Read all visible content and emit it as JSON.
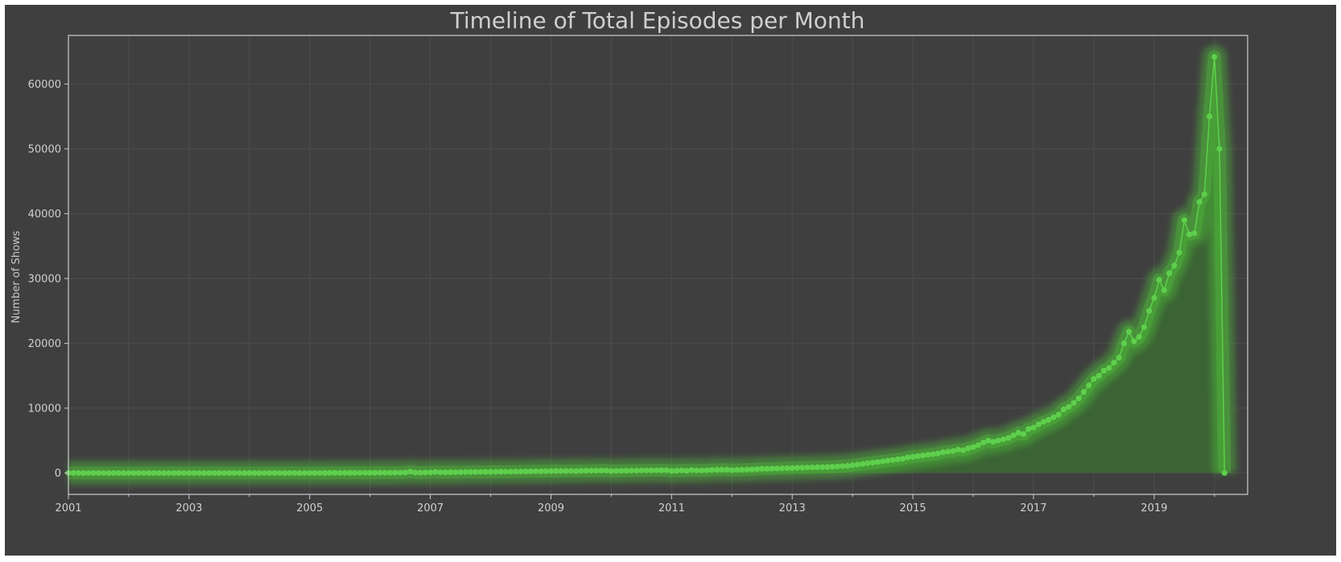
{
  "chart_data": {
    "type": "line",
    "title": "Timeline of Total Episodes per Month",
    "xlabel": "",
    "ylabel": "Number of Shows",
    "x_range": [
      "2001-01",
      "2020-06"
    ],
    "xlim": [
      2001.0,
      2020.55
    ],
    "ylim": [
      -3300,
      67500
    ],
    "x_ticks": [
      "2001",
      "2003",
      "2005",
      "2007",
      "2009",
      "2011",
      "2013",
      "2015",
      "2017",
      "2019"
    ],
    "y_ticks": [
      0,
      10000,
      20000,
      30000,
      40000,
      50000,
      60000
    ],
    "grid": true,
    "legend": "none",
    "colors": {
      "line": "#5ecf4c",
      "fill": "#3b6a33",
      "glow": "#4fbf3a",
      "background": "#3f3f3f",
      "axes": "#cccccc",
      "grid": "#4d4d4d"
    },
    "series": [
      {
        "values": [
          0,
          0,
          0,
          0,
          0,
          0,
          0,
          0,
          0,
          0,
          0,
          0,
          0,
          0,
          0,
          0,
          0,
          0,
          0,
          0,
          0,
          0,
          0,
          0,
          0,
          0,
          0,
          0,
          0,
          0,
          0,
          0,
          0,
          0,
          0,
          0,
          0,
          0,
          0,
          0,
          0,
          0,
          0,
          0,
          0,
          0,
          0,
          0,
          10,
          10,
          10,
          10,
          10,
          20,
          20,
          20,
          20,
          20,
          30,
          30,
          30,
          30,
          40,
          40,
          40,
          50,
          50,
          60,
          200,
          60,
          60,
          70,
          80,
          150,
          90,
          100,
          120,
          110,
          130,
          140,
          150,
          160,
          170,
          180,
          180,
          190,
          200,
          200,
          210,
          220,
          230,
          240,
          250,
          270,
          260,
          280,
          290,
          300,
          300,
          310,
          320,
          300,
          330,
          340,
          350,
          360,
          370,
          380,
          300,
          320,
          340,
          350,
          360,
          380,
          380,
          400,
          400,
          410,
          420,
          430,
          300,
          350,
          400,
          350,
          450,
          400,
          380,
          420,
          480,
          500,
          500,
          520,
          450,
          480,
          500,
          520,
          550,
          600,
          650,
          640,
          680,
          700,
          720,
          750,
          750,
          800,
          820,
          850,
          860,
          880,
          900,
          920,
          950,
          1000,
          1050,
          1100,
          1200,
          1300,
          1400,
          1500,
          1600,
          1700,
          1800,
          1900,
          2000,
          2100,
          2200,
          2400,
          2500,
          2600,
          2700,
          2800,
          2900,
          3000,
          3200,
          3300,
          3400,
          3600,
          3500,
          3800,
          4000,
          4300,
          4700,
          5000,
          4800,
          5000,
          5200,
          5400,
          5800,
          6200,
          6000,
          6800,
          7000,
          7500,
          7900,
          8200,
          8600,
          9000,
          9800,
          10200,
          10800,
          11500,
          12500,
          13500,
          14500,
          15000,
          15800,
          16200,
          17000,
          17800,
          20000,
          21800,
          20300,
          21000,
          22500,
          25000,
          27000,
          29800,
          28200,
          30800,
          32000,
          34000,
          39000,
          36800,
          37000,
          41800,
          43000,
          55000,
          64200,
          50000,
          0
        ]
      }
    ]
  }
}
